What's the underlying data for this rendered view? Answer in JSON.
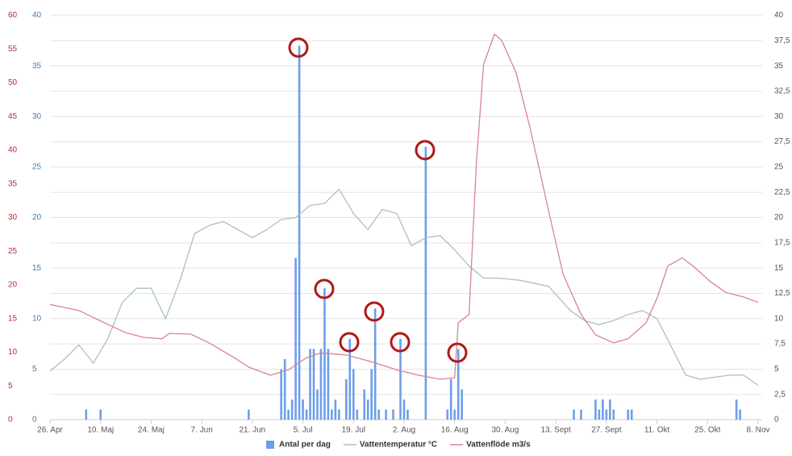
{
  "chart_data": {
    "type": "combo",
    "xlim": [
      0,
      196
    ],
    "xticks": [
      {
        "value": 0,
        "label": "26. Apr"
      },
      {
        "value": 14,
        "label": "10. Maj"
      },
      {
        "value": 28,
        "label": "24. Maj"
      },
      {
        "value": 42,
        "label": "7. Jun"
      },
      {
        "value": 56,
        "label": "21. Jun"
      },
      {
        "value": 70,
        "label": "5. Jul"
      },
      {
        "value": 84,
        "label": "19. Jul"
      },
      {
        "value": 98,
        "label": "2. Aug"
      },
      {
        "value": 112,
        "label": "16. Aug"
      },
      {
        "value": 126,
        "label": "30. Aug"
      },
      {
        "value": 140,
        "label": "13. Sept"
      },
      {
        "value": 154,
        "label": "27. Sept"
      },
      {
        "value": 168,
        "label": "11. Okt"
      },
      {
        "value": 182,
        "label": "25. Okt"
      },
      {
        "value": 196,
        "label": "8. Nov"
      }
    ],
    "ylim": [
      0,
      40
    ],
    "yticks": [
      0,
      5,
      10,
      15,
      20,
      25,
      30,
      35,
      40
    ],
    "y2lim": [
      0,
      40
    ],
    "y2ticks": [
      0,
      {
        "value": 2.5,
        "label": "2,5"
      },
      5,
      {
        "value": 7.5,
        "label": "7,5"
      },
      10,
      {
        "value": 12.5,
        "label": "12,5"
      },
      15,
      {
        "value": 17.5,
        "label": "17,5"
      },
      20,
      {
        "value": 22.5,
        "label": "22,5"
      },
      25,
      {
        "value": 27.5,
        "label": "27,5"
      },
      30,
      {
        "value": 32.5,
        "label": "32,5"
      },
      35,
      {
        "value": 37.5,
        "label": "37,5"
      },
      40
    ],
    "y3lim": [
      0,
      60
    ],
    "y3ticks": [
      0,
      5,
      10,
      15,
      20,
      25,
      30,
      35,
      40,
      45,
      50,
      55,
      60
    ],
    "grid": true,
    "series": [
      {
        "name": "Antal per dag",
        "type": "bar",
        "axis": "y",
        "color": "#6d9eeb",
        "x": [
          10,
          14,
          55,
          64,
          65,
          66,
          67,
          68,
          69,
          70,
          71,
          72,
          73,
          74,
          75,
          76,
          77,
          78,
          79,
          80,
          82,
          83,
          84,
          85,
          87,
          88,
          89,
          90,
          91,
          93,
          95,
          97,
          98,
          99,
          104,
          110,
          111,
          112,
          113,
          114,
          145,
          147,
          151,
          152,
          153,
          154,
          155,
          156,
          160,
          161,
          190,
          191
        ],
        "values": [
          1,
          1,
          1,
          5,
          6,
          1,
          2,
          16,
          37,
          2,
          1,
          7,
          7,
          3,
          7,
          13,
          7,
          1,
          2,
          1,
          4,
          8,
          5,
          1,
          3,
          2,
          5,
          11,
          1,
          1,
          1,
          8,
          2,
          1,
          27,
          1,
          4,
          1,
          7,
          3,
          1,
          1,
          2,
          1,
          2,
          1,
          2,
          1,
          1,
          1,
          2,
          1
        ]
      },
      {
        "name": "Vattentemperatur °C",
        "type": "line",
        "axis": "y2",
        "color": "#a9c3bc",
        "x": [
          0,
          4,
          8,
          12,
          16,
          20,
          24,
          28,
          32,
          36,
          40,
          44,
          48,
          52,
          56,
          60,
          64,
          68,
          72,
          76,
          80,
          84,
          88,
          92,
          96,
          100,
          104,
          108,
          112,
          116,
          120,
          124,
          130,
          138,
          144,
          148,
          152,
          156,
          160,
          164,
          168,
          172,
          176,
          180,
          184,
          188,
          192,
          196
        ],
        "values": [
          4.8,
          6,
          7.4,
          5.6,
          8,
          11.6,
          13,
          13,
          10,
          13.8,
          18.4,
          19.2,
          19.6,
          18.8,
          18,
          18.8,
          19.8,
          20,
          21.2,
          21.4,
          22.8,
          20.4,
          18.8,
          20.8,
          20.4,
          17.2,
          18,
          18.2,
          16.8,
          15.2,
          14,
          14,
          13.8,
          13.2,
          10.8,
          9.8,
          9.4,
          9.8,
          10.4,
          10.8,
          10,
          7.2,
          4.4,
          4,
          4.2,
          4.4,
          4.4,
          3.4
        ]
      },
      {
        "name": "Vattenflöde m3/s",
        "type": "line",
        "axis": "y3",
        "color": "#d9838f",
        "x": [
          0,
          8,
          15,
          21,
          26,
          31,
          33,
          39,
          44,
          51,
          55,
          61,
          66,
          71,
          75,
          82,
          89,
          96,
          102,
          108,
          112,
          113,
          116,
          118,
          120,
          123,
          125,
          129,
          133,
          138,
          142,
          147,
          151,
          156,
          160,
          165,
          168,
          171,
          175,
          178,
          183,
          187,
          192,
          196
        ],
        "values": [
          17.1,
          16.2,
          14.4,
          12.9,
          12.2,
          12,
          12.8,
          12.7,
          11.4,
          9.2,
          7.8,
          6.6,
          7.4,
          9.2,
          9.9,
          9.6,
          8.6,
          7.4,
          6.6,
          6,
          6.2,
          14.4,
          15.6,
          38,
          52.7,
          57.2,
          56.3,
          51.5,
          43,
          31,
          21.6,
          15.6,
          12.6,
          11.4,
          12,
          14.4,
          18,
          22.8,
          24,
          22.8,
          20.4,
          18.9,
          18.2,
          17.4
        ]
      }
    ]
  }
}
